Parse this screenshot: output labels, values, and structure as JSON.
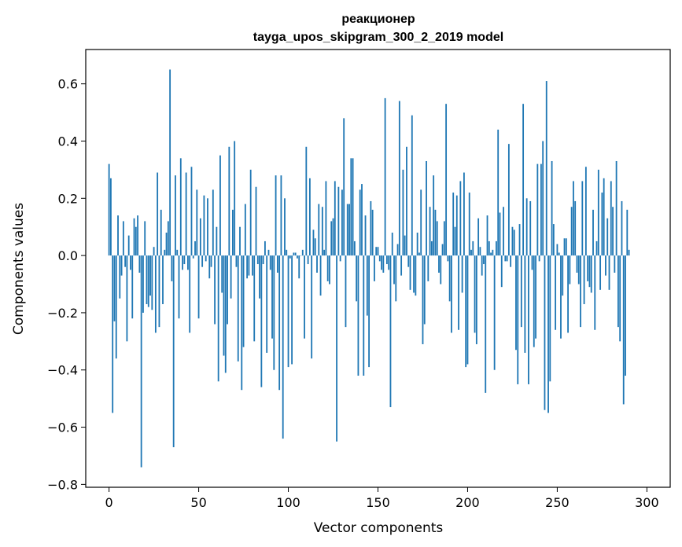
{
  "chart_data": {
    "type": "bar",
    "title": "реакционер",
    "subtitle": "tayga_upos_skipgram_300_2_2019 model",
    "xlabel": "Vector components",
    "ylabel": "Components values",
    "xlim": [
      -13,
      313
    ],
    "ylim": [
      -0.81,
      0.72
    ],
    "xticks": [
      0,
      50,
      100,
      150,
      200,
      250,
      300
    ],
    "xtick_labels": [
      "0",
      "50",
      "100",
      "150",
      "200",
      "250",
      "300"
    ],
    "yticks": [
      -0.8,
      -0.6,
      -0.4,
      -0.2,
      0.0,
      0.2,
      0.4,
      0.6
    ],
    "ytick_labels": [
      "−0.8",
      "−0.6",
      "−0.4",
      "−0.2",
      "0.0",
      "0.2",
      "0.4",
      "0.6"
    ],
    "grid": false,
    "bar_color": "#1f77b4",
    "values": [
      0.32,
      0.27,
      -0.55,
      -0.23,
      -0.36,
      0.14,
      -0.15,
      -0.07,
      0.12,
      -0.04,
      -0.3,
      0.07,
      -0.05,
      -0.22,
      0.13,
      0.1,
      0.14,
      -0.06,
      -0.74,
      -0.2,
      0.12,
      -0.17,
      -0.18,
      -0.14,
      -0.19,
      0.03,
      -0.27,
      0.29,
      -0.25,
      0.16,
      -0.17,
      0.02,
      0.08,
      0.12,
      0.65,
      -0.09,
      -0.67,
      0.28,
      0.02,
      -0.22,
      0.34,
      -0.05,
      -0.03,
      0.29,
      -0.05,
      -0.27,
      0.31,
      -0.01,
      0.05,
      0.23,
      -0.22,
      0.13,
      -0.04,
      0.21,
      -0.02,
      0.2,
      -0.08,
      -0.04,
      0.23,
      -0.24,
      0.1,
      -0.44,
      0.35,
      -0.13,
      -0.35,
      -0.41,
      -0.24,
      0.38,
      -0.15,
      0.16,
      0.4,
      -0.04,
      -0.37,
      0.1,
      -0.47,
      -0.32,
      0.18,
      -0.08,
      -0.07,
      0.3,
      -0.07,
      -0.3,
      0.24,
      -0.03,
      -0.15,
      -0.46,
      -0.03,
      0.05,
      -0.34,
      0.02,
      -0.05,
      -0.29,
      -0.4,
      0.28,
      -0.06,
      -0.47,
      0.28,
      -0.64,
      0.2,
      0.02,
      -0.39,
      -0.01,
      -0.38,
      0.01,
      0.01,
      -0.01,
      -0.08,
      0.0,
      0.02,
      -0.29,
      0.38,
      -0.03,
      0.27,
      -0.36,
      0.09,
      0.06,
      -0.06,
      0.18,
      -0.14,
      0.17,
      0.02,
      0.26,
      -0.09,
      -0.1,
      0.12,
      0.13,
      0.26,
      -0.65,
      0.24,
      -0.02,
      0.23,
      0.48,
      -0.25,
      0.18,
      0.18,
      0.34,
      0.34,
      0.05,
      -0.16,
      -0.42,
      0.23,
      0.25,
      -0.42,
      0.14,
      -0.21,
      -0.39,
      0.19,
      0.16,
      -0.09,
      0.03,
      0.03,
      -0.02,
      -0.05,
      -0.06,
      0.55,
      -0.03,
      -0.05,
      -0.53,
      0.08,
      -0.1,
      -0.16,
      0.04,
      0.54,
      -0.07,
      0.3,
      0.07,
      0.38,
      -0.04,
      -0.12,
      0.49,
      -0.13,
      -0.14,
      0.08,
      0.01,
      0.23,
      -0.31,
      -0.24,
      0.33,
      -0.09,
      0.17,
      0.05,
      0.28,
      0.16,
      0.12,
      -0.06,
      -0.1,
      0.04,
      0.12,
      0.53,
      -0.02,
      -0.16,
      -0.27,
      0.22,
      0.1,
      0.21,
      -0.26,
      0.26,
      -0.13,
      0.29,
      -0.39,
      -0.38,
      0.22,
      0.02,
      0.05,
      -0.27,
      -0.31,
      0.13,
      0.03,
      -0.07,
      -0.03,
      -0.48,
      0.14,
      0.05,
      0.01,
      0.02,
      -0.4,
      0.05,
      0.44,
      0.15,
      -0.11,
      0.17,
      -0.02,
      -0.02,
      0.39,
      -0.04,
      0.1,
      0.09,
      -0.33,
      -0.45,
      0.11,
      -0.25,
      0.53,
      -0.34,
      0.2,
      -0.45,
      0.19,
      -0.05,
      -0.32,
      -0.29,
      0.32,
      -0.02,
      0.32,
      0.4,
      -0.54,
      0.61,
      -0.55,
      -0.44,
      0.33,
      0.11,
      -0.26,
      0.04,
      0.01,
      -0.29,
      -0.14,
      0.06,
      0.06,
      -0.27,
      -0.1,
      0.17,
      0.26,
      0.19,
      -0.06,
      -0.1,
      -0.25,
      0.26,
      -0.17,
      0.31,
      -0.09,
      -0.11,
      -0.13,
      0.16,
      -0.26,
      0.05,
      0.3,
      -0.12,
      0.22,
      0.27,
      -0.07,
      0.13,
      -0.12,
      0.26,
      0.17,
      -0.06,
      0.33,
      -0.25,
      -0.3,
      0.19,
      -0.52,
      -0.42,
      0.16,
      0.02
    ]
  }
}
